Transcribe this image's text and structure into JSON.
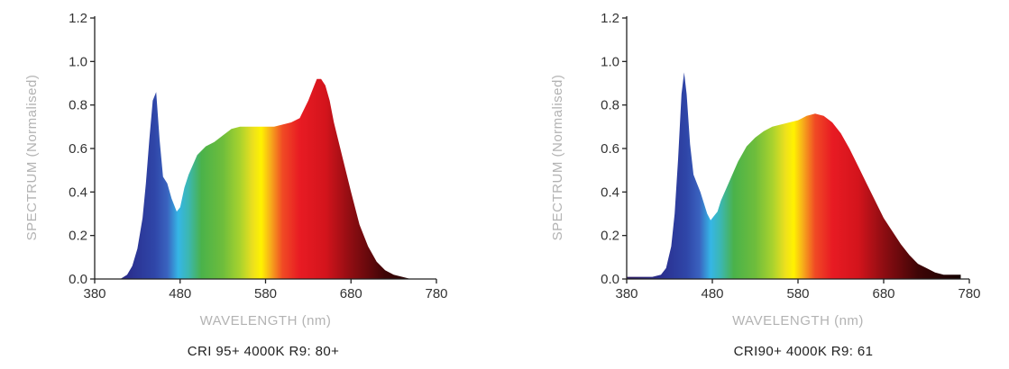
{
  "chart_data": [
    {
      "type": "area",
      "caption": "CRI 95+ 4000K R9: 80+",
      "xlabel": "WAVELENGTH (nm)",
      "ylabel": "SPECTRUM (Normalised)",
      "xlim": [
        380,
        780
      ],
      "ylim": [
        0,
        1.2
      ],
      "x_ticks": [
        "380",
        "480",
        "580",
        "680",
        "780"
      ],
      "y_ticks": [
        "0.0",
        "0.2",
        "0.4",
        "0.6",
        "0.8",
        "1.0",
        "1.2"
      ],
      "series": [
        {
          "x": [
            400,
            410,
            418,
            424,
            430,
            436,
            440,
            444,
            448,
            452,
            456,
            460,
            465,
            470,
            476,
            480,
            485,
            490,
            500,
            510,
            520,
            530,
            540,
            550,
            560,
            570,
            580,
            590,
            600,
            610,
            620,
            630,
            636,
            640,
            645,
            650,
            655,
            660,
            670,
            680,
            690,
            700,
            710,
            720,
            730,
            740,
            750,
            760,
            770
          ],
          "y": [
            0.0,
            0.0,
            0.02,
            0.06,
            0.14,
            0.28,
            0.44,
            0.64,
            0.82,
            0.86,
            0.64,
            0.47,
            0.44,
            0.37,
            0.31,
            0.33,
            0.42,
            0.48,
            0.57,
            0.61,
            0.63,
            0.66,
            0.69,
            0.7,
            0.7,
            0.7,
            0.7,
            0.7,
            0.71,
            0.72,
            0.74,
            0.82,
            0.88,
            0.92,
            0.92,
            0.89,
            0.82,
            0.72,
            0.56,
            0.4,
            0.25,
            0.15,
            0.08,
            0.04,
            0.02,
            0.01,
            0.0,
            0.0,
            0.0
          ]
        }
      ]
    },
    {
      "type": "area",
      "caption": "CRI90+ 4000K R9: 61",
      "xlabel": "WAVELENGTH (nm)",
      "ylabel": "SPECTRUM (Normalised)",
      "xlim": [
        380,
        780
      ],
      "ylim": [
        0,
        1.2
      ],
      "x_ticks": [
        "380",
        "480",
        "580",
        "680",
        "780"
      ],
      "y_ticks": [
        "0.0",
        "0.2",
        "0.4",
        "0.6",
        "0.8",
        "1.0",
        "1.2"
      ],
      "series": [
        {
          "x": [
            380,
            400,
            410,
            420,
            426,
            432,
            436,
            440,
            444,
            447,
            450,
            454,
            458,
            462,
            466,
            470,
            474,
            478,
            482,
            486,
            490,
            500,
            510,
            520,
            530,
            540,
            550,
            560,
            570,
            580,
            590,
            600,
            610,
            620,
            630,
            640,
            650,
            660,
            670,
            680,
            690,
            700,
            710,
            720,
            730,
            740,
            750,
            760,
            770
          ],
          "y": [
            0.01,
            0.01,
            0.01,
            0.02,
            0.05,
            0.15,
            0.3,
            0.55,
            0.85,
            0.95,
            0.85,
            0.62,
            0.48,
            0.44,
            0.4,
            0.35,
            0.3,
            0.27,
            0.29,
            0.31,
            0.36,
            0.45,
            0.54,
            0.61,
            0.65,
            0.68,
            0.7,
            0.71,
            0.72,
            0.73,
            0.75,
            0.76,
            0.75,
            0.72,
            0.67,
            0.6,
            0.52,
            0.44,
            0.36,
            0.28,
            0.22,
            0.16,
            0.11,
            0.07,
            0.05,
            0.03,
            0.02,
            0.02,
            0.02
          ]
        }
      ]
    }
  ]
}
